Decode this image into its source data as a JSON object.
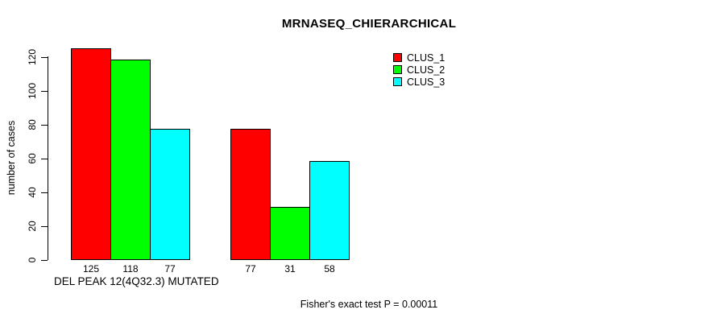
{
  "chart_data": {
    "type": "bar",
    "title": "MRNASEQ_CHIERARCHICAL",
    "ylabel": "number of cases",
    "xlabel": "DEL PEAK 12(4Q32.3) MUTATED",
    "annotation": "Fisher's exact test P = 0.00011",
    "ylim": [
      0,
      125
    ],
    "yticks": [
      0,
      20,
      40,
      60,
      80,
      100,
      120
    ],
    "grid": false,
    "legend_position": "top-right",
    "series": [
      {
        "name": "CLUS_1",
        "color": "#ff0000",
        "values": [
          125,
          77
        ]
      },
      {
        "name": "CLUS_2",
        "color": "#00ff00",
        "values": [
          118,
          31
        ]
      },
      {
        "name": "CLUS_3",
        "color": "#00ffff",
        "values": [
          77,
          58
        ]
      }
    ],
    "groups": [
      {
        "bars": [
          125,
          118,
          77
        ]
      },
      {
        "bars": [
          77,
          31,
          58
        ]
      }
    ],
    "bar_value_labels": [
      "125",
      "118",
      "77",
      "77",
      "31",
      "58"
    ],
    "colors": {
      "bar_border": "#000000",
      "text": "#000000",
      "background": "#ffffff"
    }
  }
}
